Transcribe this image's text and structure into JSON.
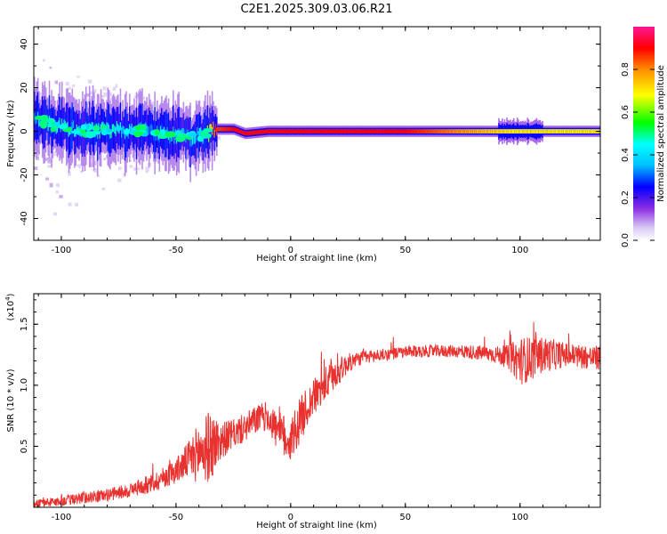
{
  "title": "C2E1.2025.309.03.06.R21",
  "chart_data": [
    {
      "type": "heatmap",
      "xlabel": "Height of straight line (km)",
      "ylabel": "Frequency (Hz)",
      "xlim": [
        -112,
        135
      ],
      "ylim": [
        -50,
        48
      ],
      "xticks": [
        -100,
        -50,
        0,
        50,
        100
      ],
      "yticks": [
        -40,
        -20,
        0,
        20,
        40
      ],
      "colorbar": {
        "label": "Normalized spectral amplitude",
        "range": [
          0,
          1
        ],
        "ticks": [
          "0.0",
          "0.2",
          "0.4",
          "0.6",
          "0.8"
        ],
        "colors": [
          "#e6d9f7",
          "#8a2be2",
          "#0000ff",
          "#00ffff",
          "#00ff00",
          "#ffff00",
          "#ff8c00",
          "#ff0000",
          "#ff1493"
        ]
      },
      "ridge": [
        {
          "x": -112,
          "f": 6,
          "amp": 0.4
        },
        {
          "x": -105,
          "f": 3,
          "amp": 0.45
        },
        {
          "x": -95,
          "f": 1,
          "amp": 0.45
        },
        {
          "x": -85,
          "f": 0,
          "amp": 0.45
        },
        {
          "x": -75,
          "f": 1,
          "amp": 0.45
        },
        {
          "x": -65,
          "f": 0,
          "amp": 0.4
        },
        {
          "x": -55,
          "f": -1,
          "amp": 0.4
        },
        {
          "x": -45,
          "f": -3,
          "amp": 0.4
        },
        {
          "x": -38,
          "f": -2,
          "amp": 0.45
        },
        {
          "x": -33,
          "f": 1,
          "amp": 0.85
        },
        {
          "x": -25,
          "f": 1,
          "amp": 0.9
        },
        {
          "x": -20,
          "f": -1,
          "amp": 0.9
        },
        {
          "x": -10,
          "f": 0,
          "amp": 0.9
        },
        {
          "x": 0,
          "f": 0,
          "amp": 0.9
        },
        {
          "x": 50,
          "f": 0,
          "amp": 0.9
        },
        {
          "x": 95,
          "f": 0,
          "amp": 0.7
        },
        {
          "x": 105,
          "f": 0,
          "amp": 0.7
        },
        {
          "x": 135,
          "f": 0,
          "amp": 0.7
        }
      ]
    },
    {
      "type": "line",
      "xlabel": "Height of straight line (km)",
      "ylabel": "SNR (10 * v/v)",
      "yscale_label": "(x10",
      "yscale_exp": "4",
      "yscale_close": ")",
      "xlim": [
        -112,
        135
      ],
      "ylim": [
        0,
        1.75
      ],
      "xticks": [
        -100,
        -50,
        0,
        50,
        100
      ],
      "yticks": [
        0.5,
        1.0,
        1.5
      ],
      "ytick_labels": [
        "0.5",
        "1.0",
        "1.5"
      ],
      "color": "#e8322f",
      "series": [
        {
          "x": [
            -112,
            -100,
            -90,
            -80,
            -70,
            -60,
            -50,
            -45,
            -40,
            -35,
            -30,
            -25,
            -20,
            -15,
            -10,
            -5,
            0,
            5,
            10,
            15,
            20,
            25,
            30,
            40,
            50,
            60,
            70,
            80,
            90,
            95,
            100,
            105,
            110,
            120,
            135
          ],
          "values": [
            0.03,
            0.05,
            0.08,
            0.1,
            0.14,
            0.2,
            0.3,
            0.38,
            0.45,
            0.5,
            0.55,
            0.6,
            0.65,
            0.72,
            0.75,
            0.6,
            0.55,
            0.75,
            0.9,
            1.0,
            1.1,
            1.18,
            1.22,
            1.25,
            1.27,
            1.28,
            1.28,
            1.27,
            1.25,
            1.23,
            1.2,
            1.22,
            1.25,
            1.25,
            1.22
          ],
          "noise": [
            0.03,
            0.04,
            0.05,
            0.05,
            0.06,
            0.08,
            0.1,
            0.15,
            0.25,
            0.3,
            0.15,
            0.12,
            0.12,
            0.12,
            0.12,
            0.18,
            0.2,
            0.18,
            0.15,
            0.15,
            0.12,
            0.08,
            0.06,
            0.05,
            0.05,
            0.05,
            0.05,
            0.06,
            0.07,
            0.1,
            0.2,
            0.18,
            0.15,
            0.1,
            0.1
          ]
        }
      ]
    }
  ]
}
